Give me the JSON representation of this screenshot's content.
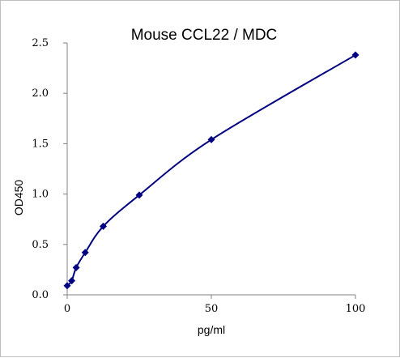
{
  "chart_data": {
    "type": "scatter",
    "title": "Mouse CCL22 / MDC",
    "xlabel": "pg/ml",
    "ylabel": "OD450",
    "xlim": [
      0,
      100
    ],
    "ylim": [
      0.0,
      2.5
    ],
    "x_ticks": [
      0,
      50,
      100
    ],
    "x_tick_labels": [
      "0",
      "50",
      "100"
    ],
    "y_ticks": [
      0.0,
      0.5,
      1.0,
      1.5,
      2.0,
      2.5
    ],
    "y_tick_labels": [
      "0.0",
      "0.5",
      "1.0",
      "1.5",
      "2.0",
      "2.5"
    ],
    "grid": false,
    "legend": "none",
    "series": [
      {
        "x": [
          0,
          1.56,
          3.12,
          6.25,
          12.5,
          25,
          50,
          100
        ],
        "y": [
          0.09,
          0.14,
          0.27,
          0.42,
          0.68,
          0.99,
          1.54,
          2.38
        ],
        "marker": "diamond",
        "line": "smooth",
        "color": "#000080"
      }
    ]
  }
}
